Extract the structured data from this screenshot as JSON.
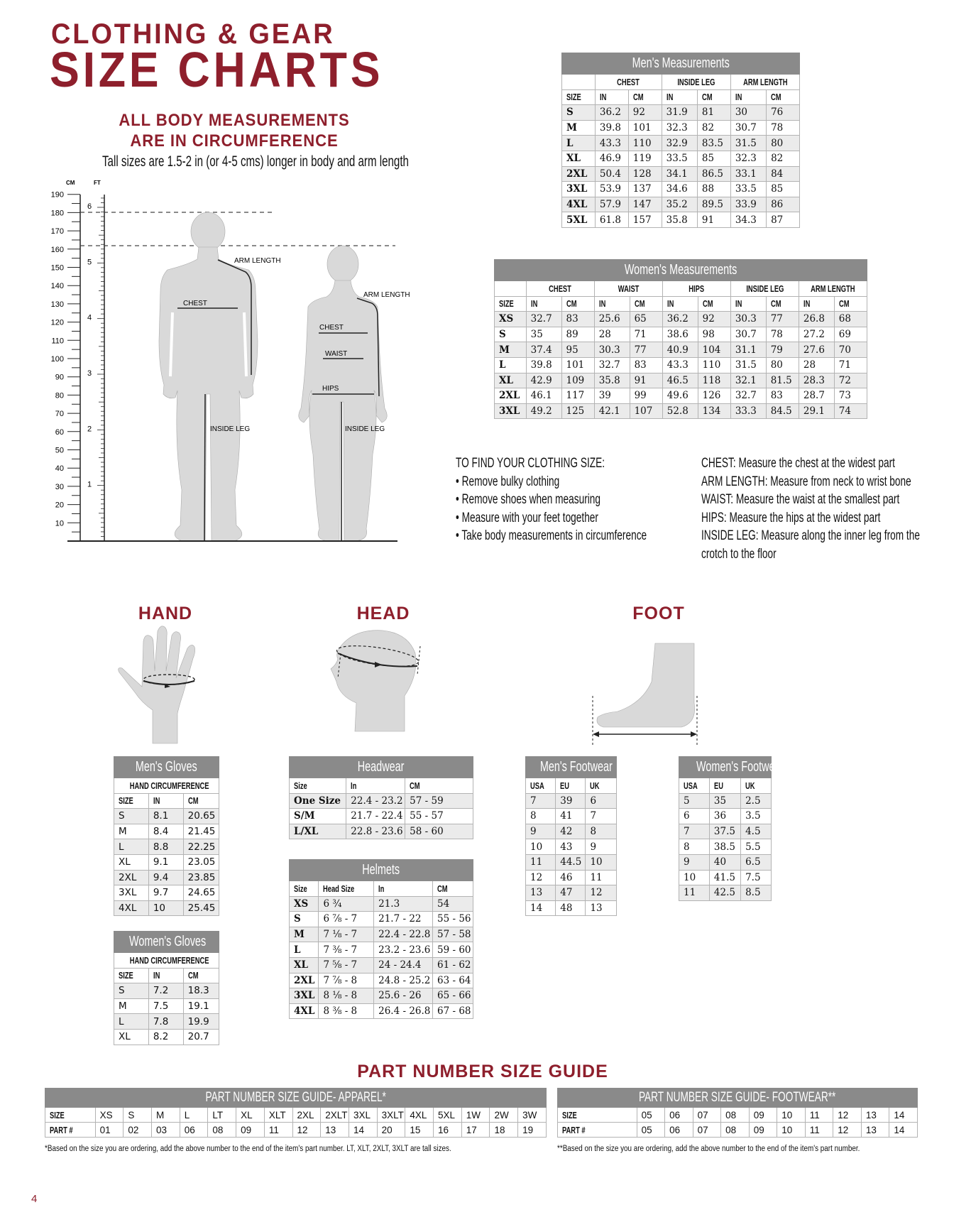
{
  "header": {
    "line1": "CLOTHING & GEAR",
    "line2": "SIZE CHARTS",
    "note_line1": "ALL BODY MEASUREMENTS",
    "note_line2": "ARE IN CIRCUMFERENCE",
    "tall_note": "Tall sizes are 1.5-2 in (or 4-5 cms) longer in body and arm  length"
  },
  "colors": {
    "brand_red": "#8e1f2c",
    "table_header_gray": "#8a8a8a",
    "row_alt": "#ebebeb",
    "figure_gray": "#d9d9d9"
  },
  "body_diagram": {
    "cm_label": "CM",
    "ft_label": "FT",
    "cm_ticks": [
      10,
      20,
      30,
      40,
      50,
      60,
      70,
      80,
      90,
      100,
      110,
      120,
      130,
      140,
      150,
      160,
      170,
      180,
      190
    ],
    "ft_ticks": [
      1,
      2,
      3,
      4,
      5,
      6
    ],
    "man": {
      "arm_length": "ARM LENGTH",
      "chest": "CHEST",
      "inside_leg": "INSIDE LEG"
    },
    "woman": {
      "arm_length": "ARM LENGTH",
      "chest": "CHEST",
      "waist": "WAIST",
      "hips": "HIPS",
      "inside_leg": "INSIDE LEG"
    }
  },
  "instructions": {
    "heading": "TO FIND YOUR CLOTHING SIZE:",
    "bullets": [
      "• Remove bulky clothing",
      "• Remove shoes when measuring",
      "• Measure with your feet together",
      "• Take body measurements in circumference"
    ],
    "definitions": [
      {
        "term": "CHEST:",
        "text": " Measure the chest at the widest part"
      },
      {
        "term": "ARM LENGTH:",
        "text": " Measure from neck to wrist bone"
      },
      {
        "term": "WAIST:",
        "text": " Measure the waist at the smallest part"
      },
      {
        "term": "HIPS:",
        "text": " Measure the hips at the widest part"
      },
      {
        "term": "INSIDE LEG:",
        "text": " Measure along the inner leg from the"
      },
      {
        "term": "",
        "text": "crotch to the floor"
      }
    ]
  },
  "sections": {
    "hand": "HAND",
    "head": "HEAD",
    "foot": "FOOT",
    "part_guide": "PART NUMBER SIZE GUIDE"
  },
  "tables": {
    "mens_measurements": {
      "title": "Men's Measurements",
      "groups": [
        {
          "label": "",
          "span": 1
        },
        {
          "label": "CHEST",
          "span": 2
        },
        {
          "label": "INSIDE LEG",
          "span": 2
        },
        {
          "label": "ARM LENGTH",
          "span": 2
        }
      ],
      "columns": [
        "SIZE",
        "IN",
        "CM",
        "IN",
        "CM",
        "IN",
        "CM"
      ],
      "rows": [
        [
          "S",
          "36.2",
          "92",
          "31.9",
          "81",
          "30",
          "76"
        ],
        [
          "M",
          "39.8",
          "101",
          "32.3",
          "82",
          "30.7",
          "78"
        ],
        [
          "L",
          "43.3",
          "110",
          "32.9",
          "83.5",
          "31.5",
          "80"
        ],
        [
          "XL",
          "46.9",
          "119",
          "33.5",
          "85",
          "32.3",
          "82"
        ],
        [
          "2XL",
          "50.4",
          "128",
          "34.1",
          "86.5",
          "33.1",
          "84"
        ],
        [
          "3XL",
          "53.9",
          "137",
          "34.6",
          "88",
          "33.5",
          "85"
        ],
        [
          "4XL",
          "57.9",
          "147",
          "35.2",
          "89.5",
          "33.9",
          "86"
        ],
        [
          "5XL",
          "61.8",
          "157",
          "35.8",
          "91",
          "34.3",
          "87"
        ]
      ]
    },
    "womens_measurements": {
      "title": "Women's Measurements",
      "groups": [
        {
          "label": "",
          "span": 1
        },
        {
          "label": "CHEST",
          "span": 2
        },
        {
          "label": "WAIST",
          "span": 2
        },
        {
          "label": "HIPS",
          "span": 2
        },
        {
          "label": "INSIDE LEG",
          "span": 2
        },
        {
          "label": "ARM LENGTH",
          "span": 2
        }
      ],
      "columns": [
        "SIZE",
        "IN",
        "CM",
        "IN",
        "CM",
        "IN",
        "CM",
        "IN",
        "CM",
        "IN",
        "CM"
      ],
      "rows": [
        [
          "XS",
          "32.7",
          "83",
          "25.6",
          "65",
          "36.2",
          "92",
          "30.3",
          "77",
          "26.8",
          "68"
        ],
        [
          "S",
          "35",
          "89",
          "28",
          "71",
          "38.6",
          "98",
          "30.7",
          "78",
          "27.2",
          "69"
        ],
        [
          "M",
          "37.4",
          "95",
          "30.3",
          "77",
          "40.9",
          "104",
          "31.1",
          "79",
          "27.6",
          "70"
        ],
        [
          "L",
          "39.8",
          "101",
          "32.7",
          "83",
          "43.3",
          "110",
          "31.5",
          "80",
          "28",
          "71"
        ],
        [
          "XL",
          "42.9",
          "109",
          "35.8",
          "91",
          "46.5",
          "118",
          "32.1",
          "81.5",
          "28.3",
          "72"
        ],
        [
          "2XL",
          "46.1",
          "117",
          "39",
          "99",
          "49.6",
          "126",
          "32.7",
          "83",
          "28.7",
          "73"
        ],
        [
          "3XL",
          "49.2",
          "125",
          "42.1",
          "107",
          "52.8",
          "134",
          "33.3",
          "84.5",
          "29.1",
          "74"
        ]
      ]
    },
    "mens_gloves": {
      "title": "Men's Gloves",
      "groups": [
        {
          "label": "HAND CIRCUMFERENCE",
          "span": 3
        }
      ],
      "columns": [
        "SIZE",
        "IN",
        "CM"
      ],
      "rows": [
        [
          "S",
          "8.1",
          "20.65"
        ],
        [
          "M",
          "8.4",
          "21.45"
        ],
        [
          "L",
          "8.8",
          "22.25"
        ],
        [
          "XL",
          "9.1",
          "23.05"
        ],
        [
          "2XL",
          "9.4",
          "23.85"
        ],
        [
          "3XL",
          "9.7",
          "24.65"
        ],
        [
          "4XL",
          "10",
          "25.45"
        ]
      ]
    },
    "womens_gloves": {
      "title": "Women's Gloves",
      "groups": [
        {
          "label": "HAND CIRCUMFERENCE",
          "span": 3
        }
      ],
      "columns": [
        "SIZE",
        "IN",
        "CM"
      ],
      "rows": [
        [
          "S",
          "7.2",
          "18.3"
        ],
        [
          "M",
          "7.5",
          "19.1"
        ],
        [
          "L",
          "7.8",
          "19.9"
        ],
        [
          "XL",
          "8.2",
          "20.7"
        ]
      ]
    },
    "headwear": {
      "title": "Headwear",
      "columns": [
        "Size",
        "In",
        "CM"
      ],
      "rows": [
        [
          "One Size",
          "22.4 - 23.2",
          "57 - 59"
        ],
        [
          "S/M",
          "21.7 - 22.4",
          "55 - 57"
        ],
        [
          "L/XL",
          "22.8 - 23.6",
          "58 - 60"
        ]
      ]
    },
    "helmets": {
      "title": "Helmets",
      "columns": [
        "Size",
        "Head Size",
        "In",
        "CM"
      ],
      "rows": [
        [
          "XS",
          "6 ¾",
          "21.3",
          "54"
        ],
        [
          "S",
          "6 ⅞ - 7",
          "21.7 - 22",
          "55 - 56"
        ],
        [
          "M",
          "7 ⅛ - 7",
          "22.4 - 22.8",
          "57 - 58"
        ],
        [
          "L",
          "7 ⅜ - 7",
          "23.2 - 23.6",
          "59 - 60"
        ],
        [
          "XL",
          "7 ⅝ - 7",
          "24 - 24.4",
          "61 - 62"
        ],
        [
          "2XL",
          "7 ⅞ - 8",
          "24.8 - 25.2",
          "63 - 64"
        ],
        [
          "3XL",
          "8 ⅛ - 8",
          "25.6 - 26",
          "65 - 66"
        ],
        [
          "4XL",
          "8 ⅜ - 8",
          "26.4 - 26.8",
          "67 - 68"
        ]
      ]
    },
    "mens_footwear": {
      "title": "Men's Footwear",
      "columns": [
        "USA",
        "EU",
        "UK"
      ],
      "rows": [
        [
          "7",
          "39",
          "6"
        ],
        [
          "8",
          "41",
          "7"
        ],
        [
          "9",
          "42",
          "8"
        ],
        [
          "10",
          "43",
          "9"
        ],
        [
          "11",
          "44.5",
          "10"
        ],
        [
          "12",
          "46",
          "11"
        ],
        [
          "13",
          "47",
          "12"
        ],
        [
          "14",
          "48",
          "13"
        ]
      ]
    },
    "womens_footwear": {
      "title": "Women's Footwear",
      "columns": [
        "USA",
        "EU",
        "UK"
      ],
      "rows": [
        [
          "5",
          "35",
          "2.5"
        ],
        [
          "6",
          "36",
          "3.5"
        ],
        [
          "7",
          "37.5",
          "4.5"
        ],
        [
          "8",
          "38.5",
          "5.5"
        ],
        [
          "9",
          "40",
          "6.5"
        ],
        [
          "10",
          "41.5",
          "7.5"
        ],
        [
          "11",
          "42.5",
          "8.5"
        ]
      ]
    },
    "part_apparel": {
      "title": "PART NUMBER SIZE GUIDE- APPAREL*",
      "rows": [
        [
          "SIZE",
          "XS",
          "S",
          "M",
          "L",
          "LT",
          "XL",
          "XLT",
          "2XL",
          "2XLT",
          "3XL",
          "3XLT",
          "4XL",
          "5XL",
          "1W",
          "2W",
          "3W"
        ],
        [
          "PART #",
          "01",
          "02",
          "03",
          "06",
          "08",
          "09",
          "11",
          "12",
          "13",
          "14",
          "20",
          "15",
          "16",
          "17",
          "18",
          "19"
        ]
      ],
      "footnote": "*Based on the size you are ordering, add the above number to the end of the item's part number. LT, XLT, 2XLT, 3XLT are tall sizes."
    },
    "part_footwear": {
      "title": "PART NUMBER SIZE GUIDE- FOOTWEAR**",
      "rows": [
        [
          "SIZE",
          "05",
          "06",
          "07",
          "08",
          "09",
          "10",
          "11",
          "12",
          "13",
          "14"
        ],
        [
          "PART #",
          "05",
          "06",
          "07",
          "08",
          "09",
          "10",
          "11",
          "12",
          "13",
          "14"
        ]
      ],
      "footnote": "**Based on the size you are ordering, add the above number to the end of the item's part number."
    }
  },
  "page_number": "4"
}
